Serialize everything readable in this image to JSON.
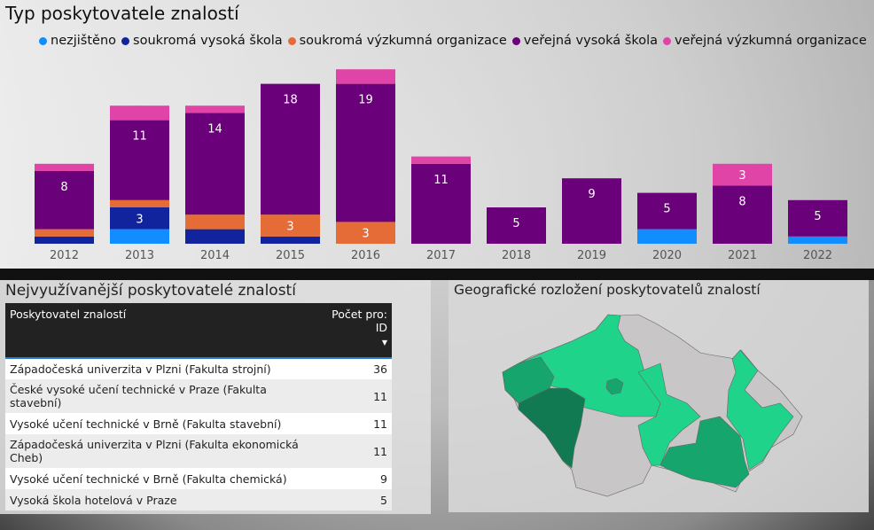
{
  "title": "Typ poskytovatele znalostí",
  "legend": [
    {
      "name": "nezjištěno",
      "color": "#118dff"
    },
    {
      "name": "soukromá vysoká škola",
      "color": "#12239e"
    },
    {
      "name": "soukromá výzkumná organizace",
      "color": "#e66c37"
    },
    {
      "name": "veřejná vysoká škola",
      "color": "#6b007b"
    },
    {
      "name": "veřejná výzkumná organizace",
      "color": "#e044a7"
    }
  ],
  "chart_data": {
    "type": "bar",
    "stacked": true,
    "title": "Typ poskytovatele znalostí",
    "legend_position": "top",
    "categories": [
      "2012",
      "2013",
      "2014",
      "2015",
      "2016",
      "2017",
      "2018",
      "2019",
      "2020",
      "2021",
      "2022"
    ],
    "series": [
      {
        "name": "nezjištěno",
        "values": [
          0,
          2,
          0,
          0,
          0,
          0,
          0,
          0,
          2,
          0,
          1
        ]
      },
      {
        "name": "soukromá vysoká škola",
        "values": [
          1,
          3,
          2,
          1,
          0,
          0,
          0,
          0,
          0,
          0,
          0
        ]
      },
      {
        "name": "soukromá výzkumná organizace",
        "values": [
          1,
          1,
          2,
          3,
          3,
          0,
          0,
          0,
          0,
          0,
          0
        ]
      },
      {
        "name": "veřejná vysoká škola",
        "values": [
          8,
          11,
          14,
          18,
          19,
          11,
          5,
          9,
          5,
          8,
          5
        ]
      },
      {
        "name": "veřejná výzkumná organizace",
        "values": [
          1,
          2,
          1,
          0,
          2,
          1,
          0,
          0,
          0,
          3,
          0
        ]
      }
    ],
    "labeled_min": 3
  },
  "table": {
    "title": "Nejvyužívanější poskytovatelé znalostí",
    "headers": [
      "Poskytovatel znalostí",
      "Počet pro: ID"
    ],
    "rows": [
      [
        "Západočeská univerzita v Plzni (Fakulta strojní)",
        "36"
      ],
      [
        "České vysoké učení technické v Praze (Fakulta stavební)",
        "11"
      ],
      [
        "Vysoké učení technické v Brně (Fakulta stavební)",
        "11"
      ],
      [
        "Západočeská univerzita v Plzni (Fakulta ekonomická Cheb)",
        "11"
      ],
      [
        "Vysoké učení technické v Brně (Fakulta chemická)",
        "9"
      ],
      [
        "Vysoká škola hotelová v Praze",
        "5"
      ]
    ]
  },
  "map": {
    "title": "Geografické rozložení poskytovatelů znalostí",
    "colors": {
      "none": "#c8c6c6",
      "low": "#1fd38a",
      "mid": "#16a56c",
      "high": "#127a52"
    }
  }
}
